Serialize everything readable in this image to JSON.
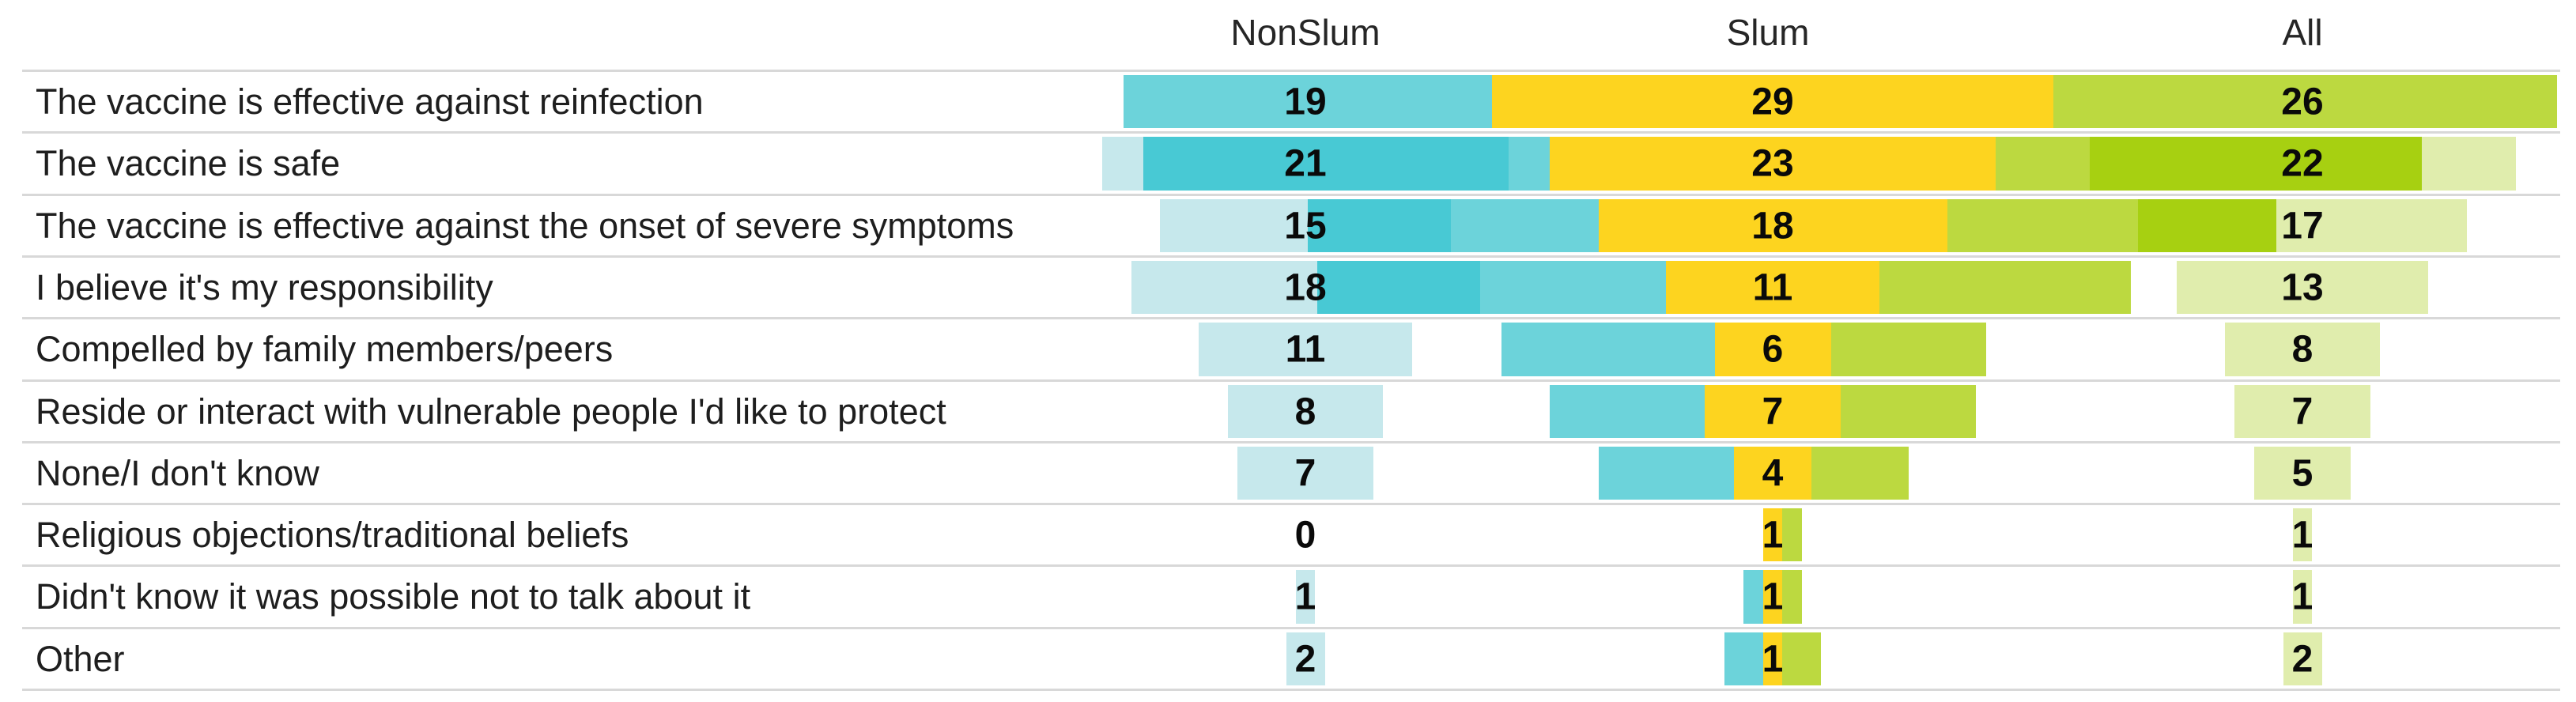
{
  "page": {
    "background": "#ffffff"
  },
  "chart_data": {
    "type": "bar",
    "variant": "centered-column-bars-with-pale-underlay",
    "title": "",
    "categories": [
      "The vaccine is effective against reinfection",
      "The vaccine is safe",
      "The vaccine is effective against the onset of severe symptoms",
      "I believe it's my responsibility",
      "Compelled by family members/peers",
      "Reside or interact with vulnerable people I'd like to protect",
      "None/I don't know",
      "Religious objections/traditional beliefs",
      "Didn't know it was possible not to talk about it",
      "Other"
    ],
    "series": [
      {
        "name": "NonSlum",
        "values": [
          19,
          21,
          15,
          18,
          11,
          8,
          7,
          0,
          1,
          2
        ]
      },
      {
        "name": "Slum",
        "values": [
          29,
          23,
          18,
          11,
          6,
          7,
          4,
          1,
          1,
          1
        ]
      },
      {
        "name": "All",
        "values": [
          26,
          22,
          17,
          13,
          8,
          7,
          5,
          1,
          1,
          2
        ]
      }
    ],
    "value_labels_shown": true,
    "legend_position": "top",
    "grid": "horizontal-row-separators",
    "colors": {
      "nonslum_bar": "#6cd3da",
      "nonslum_bar_overlap": "#48c9d4",
      "nonslum_bar_pale": "#c6e8ec",
      "slum_bar": "#fdd41f",
      "all_bar": "#bcd940",
      "all_bar_overlap": "#a7d011",
      "all_bar_pale": "#e0edad",
      "gridline": "#d8d8d8",
      "label_text": "#1e1e1e",
      "value_text": "#0a0a0a"
    }
  }
}
